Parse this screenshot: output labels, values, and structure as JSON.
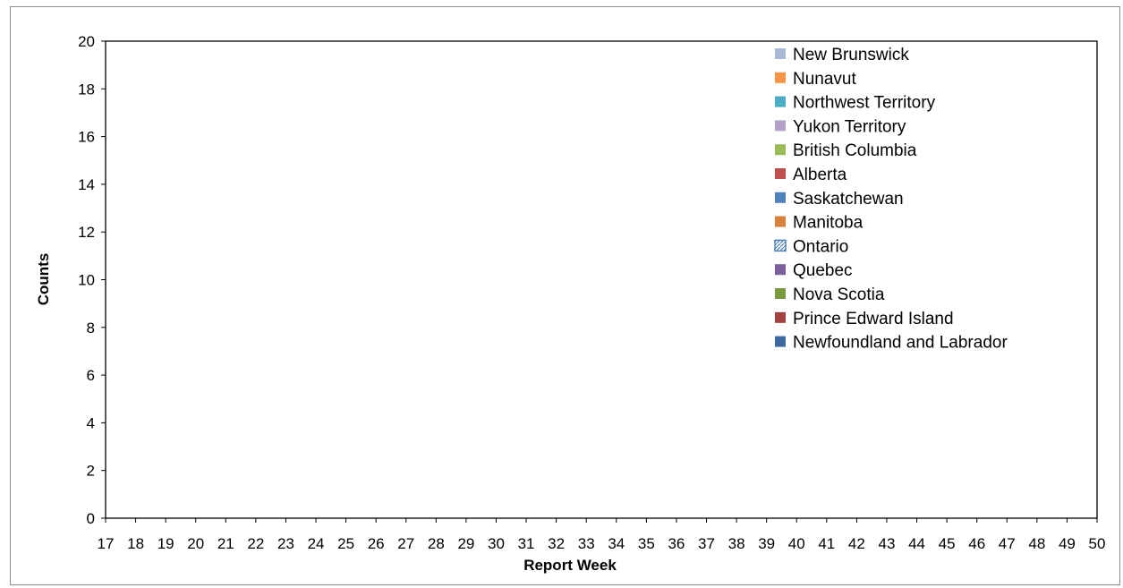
{
  "chart_data": {
    "type": "bar",
    "stacked": true,
    "title": "",
    "xlabel": "Report Week",
    "ylabel": "Counts",
    "ylim": [
      0,
      20
    ],
    "yticks": [
      0,
      2,
      4,
      6,
      8,
      10,
      12,
      14,
      16,
      18,
      20
    ],
    "categories": [
      "17",
      "18",
      "19",
      "20",
      "21",
      "22",
      "23",
      "24",
      "25",
      "26",
      "27",
      "28",
      "29",
      "30",
      "31",
      "32",
      "33",
      "34",
      "35",
      "36",
      "37",
      "38",
      "39",
      "40",
      "41",
      "42",
      "43",
      "44",
      "45",
      "46",
      "47",
      "48",
      "49",
      "50"
    ],
    "grid": false,
    "legend_position": "top-right",
    "series": [
      {
        "name": "New Brunswick",
        "color": "#a9b9d8",
        "values": [
          0,
          0,
          0,
          0,
          0,
          0,
          0,
          0,
          0,
          0,
          0,
          0,
          0,
          0,
          0,
          0,
          0,
          0,
          0,
          0,
          0,
          0,
          0,
          0,
          0,
          0,
          0,
          0,
          0,
          0,
          0,
          0,
          0,
          0
        ]
      },
      {
        "name": "Nunavut",
        "color": "#f79646",
        "values": [
          0,
          0,
          0,
          0,
          0,
          0,
          0,
          0,
          0,
          0,
          0,
          0,
          0,
          0,
          0,
          0,
          0,
          0,
          0,
          0,
          0,
          0,
          0,
          0,
          0,
          0,
          0,
          0,
          0,
          0,
          0,
          0,
          0,
          0
        ]
      },
      {
        "name": "Northwest Territory",
        "color": "#4bacc6",
        "values": [
          0,
          0,
          0,
          0,
          0,
          0,
          0,
          0,
          0,
          0,
          0,
          0,
          0,
          0,
          0,
          0,
          0,
          0,
          0,
          0,
          0,
          0,
          0,
          0,
          0,
          0,
          0,
          0,
          0,
          0,
          0,
          0,
          0,
          0
        ]
      },
      {
        "name": "Yukon Territory",
        "color": "#b3a2c7",
        "values": [
          0,
          0,
          0,
          0,
          0,
          0,
          0,
          0,
          0,
          0,
          0,
          0,
          0,
          0,
          0,
          0,
          0,
          0,
          0,
          0,
          0,
          0,
          0,
          0,
          0,
          0,
          0,
          0,
          0,
          0,
          0,
          0,
          0,
          0
        ]
      },
      {
        "name": "British Columbia",
        "color": "#9bbb59",
        "values": [
          0,
          0,
          0,
          0,
          0,
          0,
          0,
          0,
          0,
          0,
          0,
          0,
          0,
          0,
          0,
          0,
          0,
          0,
          0,
          0,
          0,
          0,
          0,
          0,
          0,
          0,
          0,
          0,
          0,
          0,
          0,
          0,
          0,
          0
        ]
      },
      {
        "name": "Alberta",
        "color": "#c0504d",
        "values": [
          0,
          0,
          0,
          0,
          0,
          0,
          0,
          0,
          0,
          0,
          0,
          0,
          0,
          0,
          0,
          0,
          0,
          0,
          0,
          0,
          0,
          0,
          0,
          0,
          0,
          0,
          0,
          0,
          0,
          0,
          0,
          0,
          0,
          0
        ]
      },
      {
        "name": "Saskatchewan",
        "color": "#4f81bd",
        "values": [
          0,
          0,
          0,
          0,
          0,
          0,
          0,
          0,
          0,
          0,
          0,
          0,
          0,
          0,
          0,
          0,
          0,
          0,
          0,
          0,
          0,
          0,
          0,
          0,
          0,
          0,
          0,
          0,
          0,
          0,
          0,
          0,
          0,
          0
        ]
      },
      {
        "name": "Manitoba",
        "color": "#d7823f",
        "values": [
          0,
          0,
          0,
          0,
          0,
          0,
          0,
          0,
          0,
          0,
          0,
          0,
          0,
          0,
          0,
          0,
          0,
          0,
          0,
          0,
          0,
          0,
          0,
          0,
          0,
          0,
          0,
          0,
          0,
          0,
          0,
          0,
          0,
          0
        ]
      },
      {
        "name": "Ontario",
        "color": "#4f81bd",
        "pattern": true,
        "values": [
          0,
          0,
          0,
          0,
          0,
          0,
          0,
          0,
          0,
          0,
          0,
          0,
          0,
          0,
          0,
          0,
          0,
          0,
          0,
          0,
          0,
          0,
          0,
          0,
          0,
          0,
          0,
          0,
          0,
          0,
          0,
          0,
          0,
          0
        ]
      },
      {
        "name": "Quebec",
        "color": "#7c5fa0",
        "values": [
          0,
          0,
          0,
          0,
          0,
          0,
          0,
          0,
          0,
          0,
          0,
          0,
          0,
          0,
          0,
          0,
          0,
          0,
          0,
          0,
          0,
          0,
          0,
          0,
          0,
          0,
          0,
          0,
          0,
          0,
          0,
          0,
          0,
          0
        ]
      },
      {
        "name": "Nova Scotia",
        "color": "#77993f",
        "values": [
          0,
          0,
          0,
          0,
          0,
          0,
          0,
          0,
          0,
          0,
          0,
          0,
          0,
          0,
          0,
          0,
          0,
          0,
          0,
          0,
          0,
          0,
          0,
          0,
          0,
          0,
          0,
          0,
          0,
          0,
          0,
          0,
          0,
          0
        ]
      },
      {
        "name": "Prince Edward Island",
        "color": "#a4403d",
        "values": [
          0,
          0,
          0,
          0,
          0,
          0,
          0,
          0,
          0,
          0,
          0,
          0,
          0,
          0,
          0,
          0,
          0,
          0,
          0,
          0,
          0,
          0,
          0,
          0,
          0,
          0,
          0,
          0,
          0,
          0,
          0,
          0,
          0,
          0
        ]
      },
      {
        "name": "Newfoundland and Labrador",
        "color": "#3e6aa1",
        "values": [
          0,
          0,
          0,
          0,
          0,
          0,
          0,
          0,
          0,
          0,
          0,
          0,
          0,
          0,
          0,
          0,
          0,
          0,
          0,
          0,
          0,
          0,
          0,
          0,
          0,
          0,
          0,
          0,
          0,
          0,
          0,
          0,
          0,
          0
        ]
      }
    ]
  }
}
